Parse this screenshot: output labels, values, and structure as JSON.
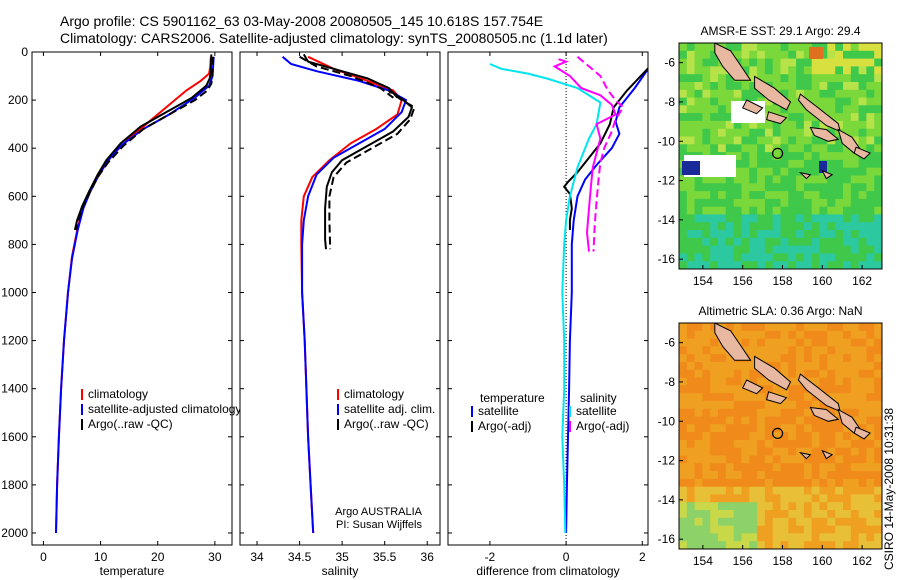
{
  "header": {
    "line1": "Argo profile: CS 5901162_63 03-May-2008 20080505_145 10.618S 157.754E",
    "line2": "Climatology: CARS2006. Satellite-adjusted climatology: synTS_20080505.nc (1.1d later)"
  },
  "side_stamp": "CSIRO 14-May-2008 10:31:38",
  "colors": {
    "red": "#ff0000",
    "blue": "#0000ff",
    "black": "#000000",
    "cyan": "#00e5ee",
    "magenta": "#ff00ff"
  },
  "chart_data": [
    {
      "id": "temperature",
      "type": "line",
      "xlabel": "temperature",
      "xlim": [
        -2,
        33
      ],
      "ylim": [
        2050,
        0
      ],
      "xticks": [
        0,
        10,
        20,
        30
      ],
      "yticks": [
        0,
        200,
        400,
        600,
        800,
        1000,
        1200,
        1400,
        1600,
        1800,
        2000
      ],
      "legend": [
        "climatology",
        "satellite-adjusted climatology",
        "Argo(..raw -QC)"
      ],
      "series": [
        {
          "name": "climatology",
          "color": "red",
          "points": [
            [
              29.3,
              20
            ],
            [
              29.2,
              60
            ],
            [
              29,
              90
            ],
            [
              27.5,
              120
            ],
            [
              25,
              160
            ],
            [
              22,
              220
            ],
            [
              18.5,
              290
            ],
            [
              15,
              360
            ],
            [
              12,
              430
            ],
            [
              10,
              500
            ],
            [
              8.3,
              570
            ],
            [
              7,
              640
            ],
            [
              6,
              730
            ],
            [
              5,
              850
            ],
            [
              4.3,
              1000
            ],
            [
              3.6,
              1200
            ],
            [
              3.1,
              1400
            ],
            [
              2.7,
              1600
            ],
            [
              2.4,
              1800
            ],
            [
              2.2,
              2000
            ]
          ]
        },
        {
          "name": "satellite-adjusted climatology",
          "color": "blue",
          "points": [
            [
              29.8,
              20
            ],
            [
              29.7,
              60
            ],
            [
              29.6,
              100
            ],
            [
              29,
              140
            ],
            [
              26.5,
              190
            ],
            [
              22,
              260
            ],
            [
              17.5,
              320
            ],
            [
              13.5,
              390
            ],
            [
              11,
              460
            ],
            [
              9.5,
              520
            ],
            [
              8.2,
              580
            ],
            [
              7,
              650
            ],
            [
              6,
              740
            ],
            [
              5,
              860
            ],
            [
              4.3,
              1000
            ],
            [
              3.6,
              1200
            ],
            [
              3.1,
              1400
            ],
            [
              2.7,
              1600
            ],
            [
              2.4,
              1800
            ],
            [
              2.2,
              2000
            ]
          ]
        },
        {
          "name": "Argo(..raw -QC)",
          "color": "black",
          "points": [
            [
              29.4,
              10
            ],
            [
              29.3,
              40
            ],
            [
              29.3,
              80
            ],
            [
              29.1,
              110
            ],
            [
              28.5,
              140
            ],
            [
              26,
              190
            ],
            [
              21.5,
              250
            ],
            [
              17,
              310
            ],
            [
              13.5,
              380
            ],
            [
              11,
              450
            ],
            [
              9.5,
              510
            ],
            [
              8,
              580
            ],
            [
              6.8,
              640
            ],
            [
              5.9,
              700
            ],
            [
              5.5,
              740
            ]
          ]
        },
        {
          "name": "Argo raw dashed",
          "color": "black",
          "dash": true,
          "points": [
            [
              29.7,
              20
            ],
            [
              29.6,
              80
            ],
            [
              29.4,
              130
            ],
            [
              28.7,
              160
            ],
            [
              26.5,
              200
            ],
            [
              22,
              260
            ],
            [
              17.5,
              320
            ],
            [
              14,
              390
            ],
            [
              11.3,
              460
            ],
            [
              9.5,
              520
            ],
            [
              8,
              590
            ],
            [
              6.8,
              650
            ],
            [
              6,
              710
            ],
            [
              5.7,
              740
            ]
          ]
        }
      ]
    },
    {
      "id": "salinity",
      "type": "line",
      "xlabel": "salinity",
      "xlim": [
        33.8,
        36.15
      ],
      "ylim": [
        2050,
        0
      ],
      "xticks": [
        34,
        34.5,
        35,
        35.5,
        36
      ],
      "yticks": [
        0,
        200,
        400,
        600,
        800,
        1000,
        1200,
        1400,
        1600,
        1800,
        2000
      ],
      "legend": [
        "climatology",
        "satellite adj. clim.",
        "Argo(..raw -QC)"
      ],
      "footer": [
        "Argo AUSTRALIA",
        "PI: Susan Wijffels"
      ],
      "series": [
        {
          "name": "climatology",
          "color": "red",
          "points": [
            [
              34.6,
              20
            ],
            [
              34.9,
              70
            ],
            [
              35.3,
              120
            ],
            [
              35.6,
              160
            ],
            [
              35.7,
              200
            ],
            [
              35.65,
              260
            ],
            [
              35.4,
              320
            ],
            [
              35.1,
              380
            ],
            [
              34.85,
              450
            ],
            [
              34.65,
              520
            ],
            [
              34.55,
              600
            ],
            [
              34.52,
              700
            ],
            [
              34.52,
              800
            ],
            [
              34.53,
              1000
            ],
            [
              34.56,
              1200
            ],
            [
              34.58,
              1400
            ],
            [
              34.6,
              1600
            ],
            [
              34.63,
              1800
            ],
            [
              34.66,
              2000
            ]
          ]
        },
        {
          "name": "satellite adj. clim.",
          "color": "blue",
          "points": [
            [
              34.3,
              20
            ],
            [
              34.4,
              50
            ],
            [
              34.7,
              80
            ],
            [
              35.2,
              120
            ],
            [
              35.55,
              160
            ],
            [
              35.75,
              200
            ],
            [
              35.7,
              250
            ],
            [
              35.5,
              320
            ],
            [
              35.2,
              380
            ],
            [
              34.9,
              440
            ],
            [
              34.7,
              510
            ],
            [
              34.6,
              600
            ],
            [
              34.55,
              700
            ],
            [
              34.53,
              800
            ],
            [
              34.53,
              1000
            ],
            [
              34.56,
              1200
            ],
            [
              34.58,
              1400
            ],
            [
              34.6,
              1600
            ],
            [
              34.63,
              1800
            ],
            [
              34.66,
              2000
            ]
          ]
        },
        {
          "name": "Argo(..raw -QC)",
          "color": "black",
          "points": [
            [
              34.55,
              10
            ],
            [
              34.6,
              40
            ],
            [
              34.9,
              70
            ],
            [
              35.3,
              110
            ],
            [
              35.55,
              150
            ],
            [
              35.65,
              190
            ],
            [
              35.6,
              170
            ],
            [
              35.72,
              200
            ],
            [
              35.82,
              230
            ],
            [
              35.78,
              270
            ],
            [
              35.6,
              330
            ],
            [
              35.3,
              390
            ],
            [
              35,
              450
            ],
            [
              34.88,
              500
            ],
            [
              34.82,
              560
            ],
            [
              34.8,
              650
            ],
            [
              34.8,
              780
            ],
            [
              34.81,
              820
            ]
          ]
        },
        {
          "name": "Argo raw dashed",
          "color": "black",
          "dash": true,
          "points": [
            [
              34.5,
              20
            ],
            [
              34.7,
              60
            ],
            [
              35.1,
              100
            ],
            [
              35.45,
              150
            ],
            [
              35.6,
              190
            ],
            [
              35.55,
              160
            ],
            [
              35.7,
              200
            ],
            [
              35.85,
              230
            ],
            [
              35.8,
              280
            ],
            [
              35.65,
              340
            ],
            [
              35.35,
              400
            ],
            [
              35.05,
              460
            ],
            [
              34.9,
              520
            ],
            [
              34.85,
              600
            ],
            [
              34.85,
              700
            ],
            [
              34.86,
              820
            ]
          ]
        }
      ]
    },
    {
      "id": "difference",
      "type": "line",
      "xlabel": "difference from climatology",
      "xlim": [
        -3.1,
        2.15
      ],
      "ylim": [
        2050,
        0
      ],
      "xticks": [
        -2,
        0,
        2
      ],
      "yticks": [
        0,
        200,
        400,
        600,
        800,
        1000,
        1200,
        1400,
        1600,
        1800,
        2000
      ],
      "legend_left_title": "temperature",
      "legend_right_title": "salinity",
      "legend": [
        "satellite",
        "Argo(-adj)",
        "satellite",
        "Argo(-adj)"
      ],
      "series": [
        {
          "name": "temperature satellite",
          "color": "blue",
          "points": [
            [
              2.2,
              60
            ],
            [
              1.8,
              150
            ],
            [
              1.4,
              230
            ],
            [
              1.3,
              290
            ],
            [
              1.4,
              340
            ],
            [
              1.2,
              400
            ],
            [
              0.8,
              470
            ],
            [
              0.5,
              530
            ],
            [
              0.3,
              600
            ],
            [
              0.2,
              700
            ],
            [
              0.15,
              800
            ],
            [
              0.15,
              1000
            ],
            [
              0.1,
              1200
            ],
            [
              0.08,
              1400
            ],
            [
              0.05,
              1600
            ],
            [
              0.02,
              1800
            ],
            [
              0,
              2000
            ]
          ]
        },
        {
          "name": "temperature Argo",
          "color": "black",
          "points": [
            [
              2.2,
              60
            ],
            [
              1.6,
              160
            ],
            [
              1.25,
              230
            ],
            [
              1.15,
              300
            ],
            [
              0.9,
              380
            ],
            [
              0.6,
              440
            ],
            [
              0.3,
              500
            ],
            [
              0.05,
              540
            ],
            [
              -0.05,
              560
            ],
            [
              0.1,
              590
            ],
            [
              0.15,
              650
            ],
            [
              0.1,
              700
            ],
            [
              0.1,
              740
            ]
          ]
        },
        {
          "name": "salinity satellite",
          "color": "cyan",
          "points": [
            [
              -2,
              50
            ],
            [
              -1.7,
              70
            ],
            [
              -1,
              90
            ],
            [
              -0.5,
              110
            ],
            [
              0.3,
              150
            ],
            [
              0.9,
              210
            ],
            [
              0.8,
              300
            ],
            [
              0.6,
              360
            ],
            [
              0.45,
              420
            ],
            [
              0.3,
              480
            ],
            [
              0.2,
              540
            ],
            [
              0.1,
              600
            ],
            [
              0,
              700
            ],
            [
              -0.05,
              800
            ],
            [
              -0.1,
              1000
            ],
            [
              -0.05,
              1200
            ],
            [
              -0.05,
              1400
            ],
            [
              -0.1,
              1600
            ],
            [
              -0.05,
              1800
            ],
            [
              -0.02,
              2000
            ]
          ]
        },
        {
          "name": "salinity Argo",
          "color": "magenta",
          "points": [
            [
              -0.2,
              30
            ],
            [
              0,
              40
            ],
            [
              -0.3,
              60
            ],
            [
              0.1,
              100
            ],
            [
              0.4,
              150
            ],
            [
              0.9,
              180
            ],
            [
              1.2,
              220
            ],
            [
              1.3,
              260
            ],
            [
              0.8,
              300
            ],
            [
              0.9,
              360
            ],
            [
              0.8,
              420
            ],
            [
              0.7,
              480
            ],
            [
              0.65,
              560
            ],
            [
              0.6,
              650
            ],
            [
              0.55,
              750
            ],
            [
              0.6,
              830
            ]
          ]
        },
        {
          "name": "salinity Argo dashed",
          "color": "magenta",
          "dash": true,
          "points": [
            [
              0.3,
              20
            ],
            [
              0.6,
              60
            ],
            [
              0.9,
              100
            ],
            [
              1.1,
              160
            ],
            [
              1.3,
              200
            ],
            [
              1.5,
              230
            ],
            [
              1.3,
              280
            ],
            [
              1.2,
              330
            ],
            [
              1.0,
              400
            ],
            [
              0.9,
              460
            ],
            [
              0.85,
              530
            ],
            [
              0.8,
              620
            ],
            [
              0.75,
              720
            ],
            [
              0.72,
              830
            ]
          ]
        }
      ]
    },
    {
      "id": "sst-map",
      "type": "heatmap",
      "title": "AMSR-E SST: 29.1 Argo: 29.4",
      "xlim": [
        152.8,
        163
      ],
      "ylim": [
        -16.5,
        -5
      ],
      "xticks": [
        154,
        156,
        158,
        160,
        162
      ],
      "yticks": [
        -6,
        -8,
        -10,
        -12,
        -14,
        -16
      ],
      "marker": [
        157.754,
        -10.618
      ],
      "palette": [
        "#2cc8a0",
        "#3fc84a",
        "#7ad83a",
        "#b6e24a"
      ]
    },
    {
      "id": "sla-map",
      "type": "heatmap",
      "title": "Altimetric SLA: 0.36 Argo: NaN",
      "xlim": [
        152.8,
        163
      ],
      "ylim": [
        -16.5,
        -5
      ],
      "xticks": [
        154,
        156,
        158,
        160,
        162
      ],
      "yticks": [
        -6,
        -8,
        -10,
        -12,
        -14,
        -16
      ],
      "marker": [
        157.754,
        -10.618
      ],
      "palette": [
        "#f08a1a",
        "#f0a020",
        "#e8c038",
        "#c8d848",
        "#8cd268"
      ]
    }
  ]
}
